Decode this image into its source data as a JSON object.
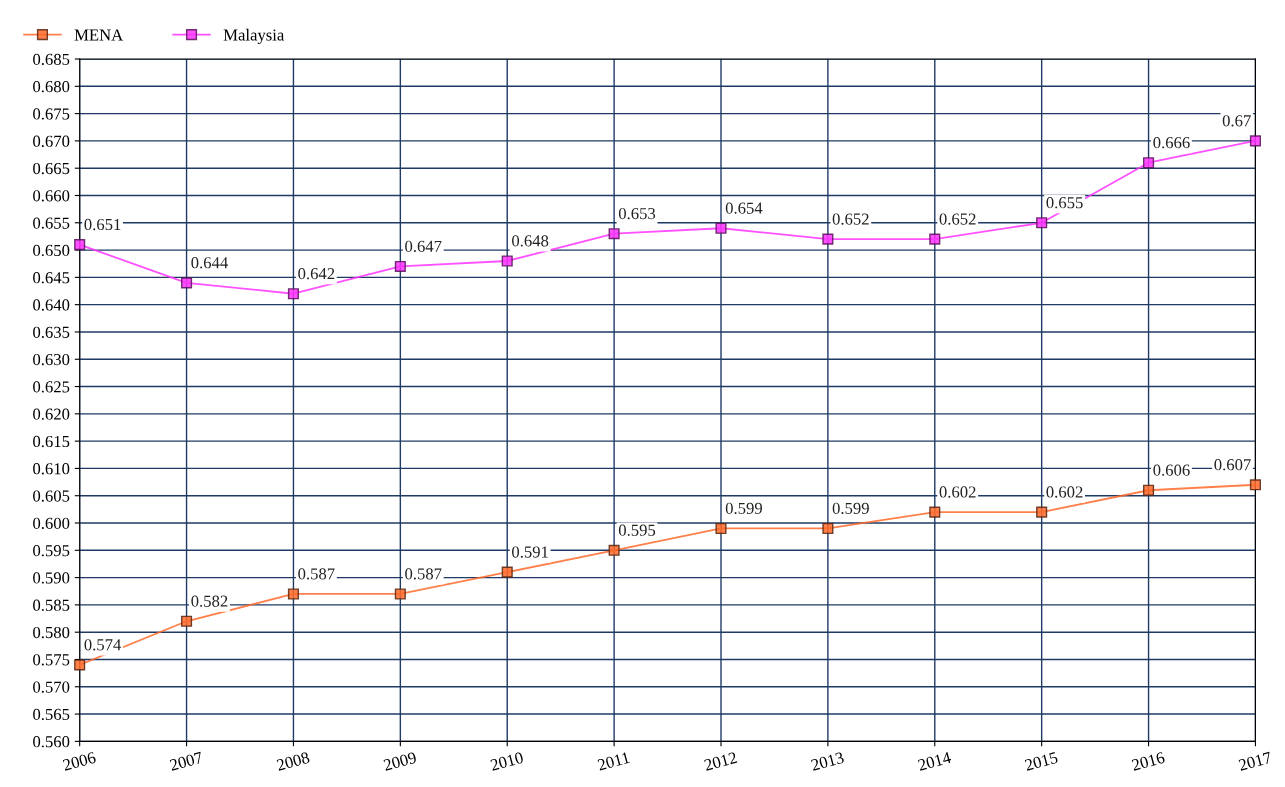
{
  "chart_data": {
    "type": "line",
    "categories": [
      "2006",
      "2007",
      "2008",
      "2009",
      "2010",
      "2011",
      "2012",
      "2013",
      "2014",
      "2015",
      "2016",
      "2017"
    ],
    "series": [
      {
        "name": "MENA",
        "color": "#ff6a2a",
        "values": [
          0.574,
          0.582,
          0.587,
          0.587,
          0.591,
          0.595,
          0.599,
          0.599,
          0.602,
          0.602,
          0.606,
          0.607
        ]
      },
      {
        "name": "Malaysia",
        "color": "#ff33ff",
        "values": [
          0.651,
          0.644,
          0.642,
          0.647,
          0.648,
          0.653,
          0.654,
          0.652,
          0.652,
          0.655,
          0.666,
          0.67
        ]
      }
    ],
    "ylim": [
      0.56,
      0.685
    ],
    "yticks": [
      {
        "value": 0.56,
        "label": "0.560"
      },
      {
        "value": 0.565,
        "label": "0.565"
      },
      {
        "value": 0.57,
        "label": "0.570"
      },
      {
        "value": 0.575,
        "label": "0.575"
      },
      {
        "value": 0.58,
        "label": "0.580"
      },
      {
        "value": 0.585,
        "label": "0.585"
      },
      {
        "value": 0.59,
        "label": "0.590"
      },
      {
        "value": 0.595,
        "label": "0.595"
      },
      {
        "value": 0.6,
        "label": "0.600"
      },
      {
        "value": 0.605,
        "label": "0.605"
      },
      {
        "value": 0.61,
        "label": "0.610"
      },
      {
        "value": 0.615,
        "label": "0.615"
      },
      {
        "value": 0.62,
        "label": "0.620"
      },
      {
        "value": 0.625,
        "label": "0.625"
      },
      {
        "value": 0.63,
        "label": "0.630"
      },
      {
        "value": 0.635,
        "label": "0.635"
      },
      {
        "value": 0.64,
        "label": "0.640"
      },
      {
        "value": 0.645,
        "label": "0.645"
      },
      {
        "value": 0.65,
        "label": "0.650"
      },
      {
        "value": 0.655,
        "label": "0.655"
      },
      {
        "value": 0.66,
        "label": "0.660"
      },
      {
        "value": 0.665,
        "label": "0.665"
      },
      {
        "value": 0.67,
        "label": "0.670"
      },
      {
        "value": 0.675,
        "label": "0.675"
      },
      {
        "value": 0.68,
        "label": "0.680"
      },
      {
        "value": 0.685,
        "label": "0.685"
      }
    ],
    "grid": true,
    "legend": "top left",
    "marker": "square",
    "line_style": "solid",
    "data_labels": true
  }
}
